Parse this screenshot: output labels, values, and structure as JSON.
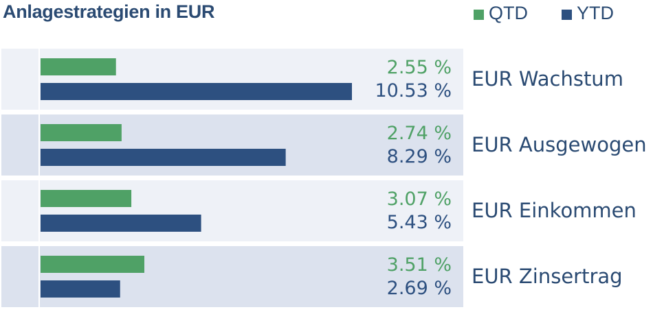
{
  "colors": {
    "qtd": "#4fa166",
    "ytd": "#2d5080",
    "text": "#2a4a72",
    "row_odd": "#eef1f7",
    "row_even": "#dce2ee",
    "divider": "#ffffff"
  },
  "chart_data": {
    "type": "bar",
    "orientation": "horizontal",
    "title": "Anlagestrategien in EUR",
    "legend_position": "top-right",
    "series": [
      {
        "name": "QTD",
        "values": [
          2.55,
          2.74,
          3.07,
          3.51
        ],
        "labels": [
          "2.55 %",
          "2.74 %",
          "3.07 %",
          "3.51 %"
        ]
      },
      {
        "name": "YTD",
        "values": [
          10.53,
          8.29,
          5.43,
          2.69
        ],
        "labels": [
          "10.53 %",
          "8.29 %",
          "5.43 %",
          "2.69 %"
        ]
      }
    ],
    "categories": [
      "EUR Wachstum",
      "EUR Ausgewogen",
      "EUR Einkommen",
      "EUR Zinsertrag"
    ],
    "xlim": [
      0,
      10.53
    ],
    "grid": false
  }
}
